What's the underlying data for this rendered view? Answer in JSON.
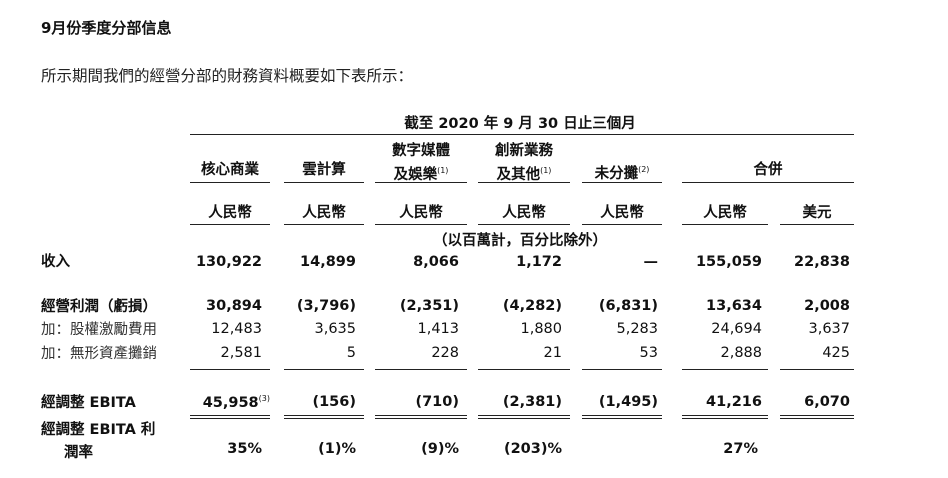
{
  "heading": "9月份季度分部信息",
  "intro": "所示期間我們的經營分部的財務資料概要如下表所示：",
  "period_header": "截至 2020 年 9 月 30 日止三個月",
  "columns": {
    "c1": "核心商業",
    "c2": "雲計算",
    "c3_line1": "數字媒體",
    "c3_line2": "及娛樂",
    "c3_note": "(1)",
    "c4_line1": "創新業務",
    "c4_line2": "及其他",
    "c4_note": "(1)",
    "c5": "未分攤",
    "c5_note": "(2)",
    "c6": "合併"
  },
  "currencies": [
    "人民幣",
    "人民幣",
    "人民幣",
    "人民幣",
    "人民幣",
    "人民幣",
    "美元"
  ],
  "unit_note": "（以百萬計，百分比除外）",
  "rows": {
    "revenue": {
      "label": "收入",
      "values": [
        "130,922",
        "14,899",
        "8,066",
        "1,172",
        "—",
        "155,059",
        "22,838"
      ]
    },
    "op_income": {
      "label": "經營利潤（虧損）",
      "values": [
        "30,894",
        "(3,796)",
        "(2,351)",
        "(4,282)",
        "(6,831)",
        "13,634",
        "2,008"
      ]
    },
    "sbc": {
      "label": "加：股權激勵費用",
      "values": [
        "12,483",
        "3,635",
        "1,413",
        "1,880",
        "5,283",
        "24,694",
        "3,637"
      ]
    },
    "amort": {
      "label": "加：無形資產攤銷",
      "values": [
        "2,581",
        "5",
        "228",
        "21",
        "53",
        "2,888",
        "425"
      ]
    },
    "ebita": {
      "label": "經調整 EBITA",
      "note": "(3)",
      "values": [
        "45,958",
        "(156)",
        "(710)",
        "(2,381)",
        "(1,495)",
        "41,216",
        "6,070"
      ]
    },
    "margin": {
      "label_line1": "經調整 EBITA 利",
      "label_line2": "潤率",
      "values": [
        "35%",
        "(1)%",
        "(9)%",
        "(203)%",
        "27%"
      ]
    }
  }
}
